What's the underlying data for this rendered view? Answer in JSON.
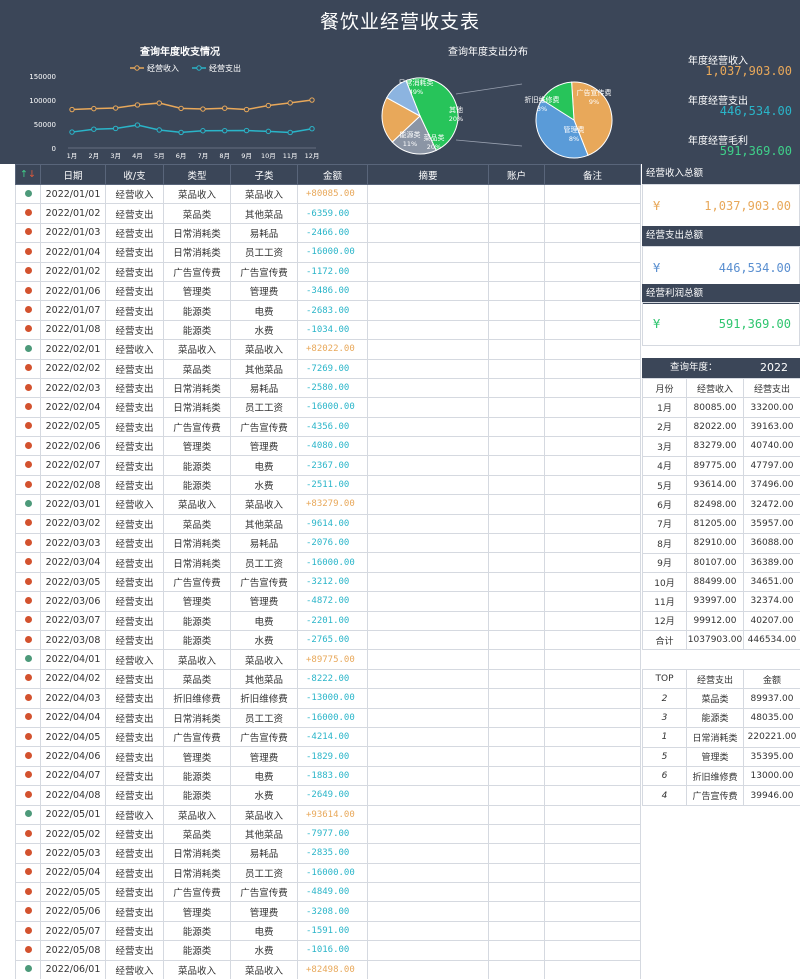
{
  "title": "餐饮业经营收支表",
  "colors": {
    "income": "#e8a85a",
    "expense": "#2ab5c9",
    "profit": "#3fd08a",
    "header_bg": "#3b4658",
    "dot_income": "#4d9a7a",
    "dot_expense": "#d3522e"
  },
  "summary": {
    "income_label": "年度经营收入",
    "income_value": "1,037,903.00",
    "expense_label": "年度经营支出",
    "expense_value": "446,534.00",
    "profit_label": "年度经营毛利",
    "profit_value": "591,369.00"
  },
  "chart_data": [
    {
      "type": "line",
      "title": "查询年度收支情况",
      "categories": [
        "1月",
        "2月",
        "3月",
        "4月",
        "5月",
        "6月",
        "7月",
        "8月",
        "9月",
        "10月",
        "11月",
        "12月"
      ],
      "series": [
        {
          "name": "经营收入",
          "values": [
            80085,
            82022,
            83279,
            89775,
            93614,
            82498,
            81205,
            82910,
            80107,
            88499,
            93997,
            99912
          ]
        },
        {
          "name": "经营支出",
          "values": [
            33200,
            39163,
            40740,
            47797,
            37496,
            32472,
            35957,
            36088,
            36389,
            34651,
            32374,
            40207
          ]
        }
      ],
      "yticks": [
        "150000",
        "100000",
        "50000",
        "0"
      ],
      "ylim": [
        0,
        150000
      ],
      "legend": "top"
    },
    {
      "type": "pie",
      "title": "查询年度支出分布",
      "slices": [
        {
          "label": "日常消耗类",
          "pct": "49%",
          "value": 49
        },
        {
          "label": "其他",
          "pct": "20%",
          "value": 20
        },
        {
          "label": "菜品类",
          "pct": "20%",
          "value": 20
        },
        {
          "label": "能源类",
          "pct": "11%",
          "value": 11
        }
      ],
      "sub_slices": [
        {
          "label": "广告宣传费",
          "pct": "9%",
          "value": 9
        },
        {
          "label": "管理费",
          "pct": "8%",
          "value": 8
        },
        {
          "label": "折旧维修费",
          "pct": "3%",
          "value": 3
        }
      ]
    }
  ],
  "ledger": {
    "headers": [
      "日期",
      "收/支",
      "类型",
      "子类",
      "金额",
      "摘要",
      "账户",
      "备注"
    ],
    "sort_icon": "sort-arrows-icon",
    "rows": [
      {
        "t": "i",
        "d": "2022/01/01",
        "k": "经营收入",
        "c": "菜品收入",
        "s": "菜品收入",
        "a": "+80085.00"
      },
      {
        "t": "e",
        "d": "2022/01/02",
        "k": "经营支出",
        "c": "菜品类",
        "s": "其他菜品",
        "a": "-6359.00"
      },
      {
        "t": "e",
        "d": "2022/01/03",
        "k": "经营支出",
        "c": "日常消耗类",
        "s": "易耗品",
        "a": "-2466.00"
      },
      {
        "t": "e",
        "d": "2022/01/04",
        "k": "经营支出",
        "c": "日常消耗类",
        "s": "员工工资",
        "a": "-16000.00"
      },
      {
        "t": "e",
        "d": "2022/01/02",
        "k": "经营支出",
        "c": "广告宣传费",
        "s": "广告宣传费",
        "a": "-1172.00"
      },
      {
        "t": "e",
        "d": "2022/01/06",
        "k": "经营支出",
        "c": "管理类",
        "s": "管理费",
        "a": "-3486.00"
      },
      {
        "t": "e",
        "d": "2022/01/07",
        "k": "经营支出",
        "c": "能源类",
        "s": "电费",
        "a": "-2683.00"
      },
      {
        "t": "e",
        "d": "2022/01/08",
        "k": "经营支出",
        "c": "能源类",
        "s": "水费",
        "a": "-1034.00"
      },
      {
        "t": "i",
        "d": "2022/02/01",
        "k": "经营收入",
        "c": "菜品收入",
        "s": "菜品收入",
        "a": "+82022.00"
      },
      {
        "t": "e",
        "d": "2022/02/02",
        "k": "经营支出",
        "c": "菜品类",
        "s": "其他菜品",
        "a": "-7269.00"
      },
      {
        "t": "e",
        "d": "2022/02/03",
        "k": "经营支出",
        "c": "日常消耗类",
        "s": "易耗品",
        "a": "-2580.00"
      },
      {
        "t": "e",
        "d": "2022/02/04",
        "k": "经营支出",
        "c": "日常消耗类",
        "s": "员工工资",
        "a": "-16000.00"
      },
      {
        "t": "e",
        "d": "2022/02/05",
        "k": "经营支出",
        "c": "广告宣传费",
        "s": "广告宣传费",
        "a": "-4356.00"
      },
      {
        "t": "e",
        "d": "2022/02/06",
        "k": "经营支出",
        "c": "管理类",
        "s": "管理费",
        "a": "-4080.00"
      },
      {
        "t": "e",
        "d": "2022/02/07",
        "k": "经营支出",
        "c": "能源类",
        "s": "电费",
        "a": "-2367.00"
      },
      {
        "t": "e",
        "d": "2022/02/08",
        "k": "经营支出",
        "c": "能源类",
        "s": "水费",
        "a": "-2511.00"
      },
      {
        "t": "i",
        "d": "2022/03/01",
        "k": "经营收入",
        "c": "菜品收入",
        "s": "菜品收入",
        "a": "+83279.00"
      },
      {
        "t": "e",
        "d": "2022/03/02",
        "k": "经营支出",
        "c": "菜品类",
        "s": "其他菜品",
        "a": "-9614.00"
      },
      {
        "t": "e",
        "d": "2022/03/03",
        "k": "经营支出",
        "c": "日常消耗类",
        "s": "易耗品",
        "a": "-2076.00"
      },
      {
        "t": "e",
        "d": "2022/03/04",
        "k": "经营支出",
        "c": "日常消耗类",
        "s": "员工工资",
        "a": "-16000.00"
      },
      {
        "t": "e",
        "d": "2022/03/05",
        "k": "经营支出",
        "c": "广告宣传费",
        "s": "广告宣传费",
        "a": "-3212.00"
      },
      {
        "t": "e",
        "d": "2022/03/06",
        "k": "经营支出",
        "c": "管理类",
        "s": "管理费",
        "a": "-4872.00"
      },
      {
        "t": "e",
        "d": "2022/03/07",
        "k": "经营支出",
        "c": "能源类",
        "s": "电费",
        "a": "-2201.00"
      },
      {
        "t": "e",
        "d": "2022/03/08",
        "k": "经营支出",
        "c": "能源类",
        "s": "水费",
        "a": "-2765.00"
      },
      {
        "t": "i",
        "d": "2022/04/01",
        "k": "经营收入",
        "c": "菜品收入",
        "s": "菜品收入",
        "a": "+89775.00"
      },
      {
        "t": "e",
        "d": "2022/04/02",
        "k": "经营支出",
        "c": "菜品类",
        "s": "其他菜品",
        "a": "-8222.00"
      },
      {
        "t": "e",
        "d": "2022/04/03",
        "k": "经营支出",
        "c": "折旧维修费",
        "s": "折旧维修费",
        "a": "-13000.00"
      },
      {
        "t": "e",
        "d": "2022/04/04",
        "k": "经营支出",
        "c": "日常消耗类",
        "s": "员工工资",
        "a": "-16000.00"
      },
      {
        "t": "e",
        "d": "2022/04/05",
        "k": "经营支出",
        "c": "广告宣传费",
        "s": "广告宣传费",
        "a": "-4214.00"
      },
      {
        "t": "e",
        "d": "2022/04/06",
        "k": "经营支出",
        "c": "管理类",
        "s": "管理费",
        "a": "-1829.00"
      },
      {
        "t": "e",
        "d": "2022/04/07",
        "k": "经营支出",
        "c": "能源类",
        "s": "电费",
        "a": "-1883.00"
      },
      {
        "t": "e",
        "d": "2022/04/08",
        "k": "经营支出",
        "c": "能源类",
        "s": "水费",
        "a": "-2649.00"
      },
      {
        "t": "i",
        "d": "2022/05/01",
        "k": "经营收入",
        "c": "菜品收入",
        "s": "菜品收入",
        "a": "+93614.00"
      },
      {
        "t": "e",
        "d": "2022/05/02",
        "k": "经营支出",
        "c": "菜品类",
        "s": "其他菜品",
        "a": "-7977.00"
      },
      {
        "t": "e",
        "d": "2022/05/03",
        "k": "经营支出",
        "c": "日常消耗类",
        "s": "易耗品",
        "a": "-2835.00"
      },
      {
        "t": "e",
        "d": "2022/05/04",
        "k": "经营支出",
        "c": "日常消耗类",
        "s": "员工工资",
        "a": "-16000.00"
      },
      {
        "t": "e",
        "d": "2022/05/05",
        "k": "经营支出",
        "c": "广告宣传费",
        "s": "广告宣传费",
        "a": "-4849.00"
      },
      {
        "t": "e",
        "d": "2022/05/06",
        "k": "经营支出",
        "c": "管理类",
        "s": "管理费",
        "a": "-3208.00"
      },
      {
        "t": "e",
        "d": "2022/05/07",
        "k": "经营支出",
        "c": "能源类",
        "s": "电费",
        "a": "-1591.00"
      },
      {
        "t": "e",
        "d": "2022/05/08",
        "k": "经营支出",
        "c": "能源类",
        "s": "水费",
        "a": "-1016.00"
      },
      {
        "t": "i",
        "d": "2022/06/01",
        "k": "经营收入",
        "c": "菜品收入",
        "s": "菜品收入",
        "a": "+82498.00"
      }
    ]
  },
  "totals": [
    {
      "label": "经营收入总额",
      "sym": "¥",
      "value": "1,037,903.00",
      "color": "income"
    },
    {
      "label": "经营支出总额",
      "sym": "¥",
      "value": "446,534.00",
      "color": "expense"
    },
    {
      "label": "经营利润总额",
      "sym": "¥",
      "value": "591,369.00",
      "color": "profit"
    }
  ],
  "query": {
    "label": "查询年度：",
    "year": "2022"
  },
  "monthly": {
    "headers": [
      "月份",
      "经营收入",
      "经营支出"
    ],
    "rows": [
      [
        "1月",
        "80085.00",
        "33200.00"
      ],
      [
        "2月",
        "82022.00",
        "39163.00"
      ],
      [
        "3月",
        "83279.00",
        "40740.00"
      ],
      [
        "4月",
        "89775.00",
        "47797.00"
      ],
      [
        "5月",
        "93614.00",
        "37496.00"
      ],
      [
        "6月",
        "82498.00",
        "32472.00"
      ],
      [
        "7月",
        "81205.00",
        "35957.00"
      ],
      [
        "8月",
        "82910.00",
        "36088.00"
      ],
      [
        "9月",
        "80107.00",
        "36389.00"
      ],
      [
        "10月",
        "88499.00",
        "34651.00"
      ],
      [
        "11月",
        "93997.00",
        "32374.00"
      ],
      [
        "12月",
        "99912.00",
        "40207.00"
      ],
      [
        "合计",
        "1037903.00",
        "446534.00"
      ]
    ]
  },
  "top": {
    "headers": [
      "TOP",
      "经营支出",
      "金额"
    ],
    "rows": [
      [
        "2",
        "菜品类",
        "89937.00"
      ],
      [
        "3",
        "能源类",
        "48035.00"
      ],
      [
        "1",
        "日常消耗类",
        "220221.00"
      ],
      [
        "5",
        "管理类",
        "35395.00"
      ],
      [
        "6",
        "折旧维修费",
        "13000.00"
      ],
      [
        "4",
        "广告宣传费",
        "39946.00"
      ]
    ]
  }
}
